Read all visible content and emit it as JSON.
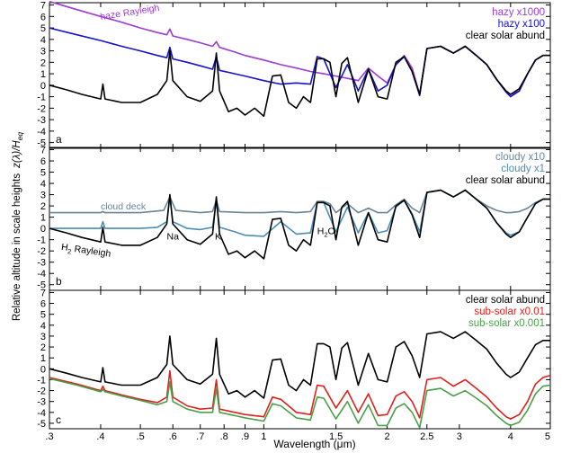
{
  "figure": {
    "ylabel_main": "Relative altitude in scale heights",
    "ylabel_symbol": "z(λ)/H",
    "ylabel_sub": "eq",
    "xlabel": "Wavelength  (μm)"
  },
  "x_axis": {
    "scale": "log",
    "range": [
      0.3,
      5.0
    ],
    "ticks": [
      0.3,
      0.4,
      0.5,
      0.6,
      0.7,
      0.8,
      0.9,
      1.0,
      1.5,
      2.0,
      2.5,
      3.0,
      4.0,
      5.0
    ],
    "tick_labels": [
      ".3",
      ".4",
      ".5",
      ".6",
      ".7",
      ".8",
      ".9",
      "1",
      "1.5",
      "2",
      "2.5",
      "3",
      "4",
      "5"
    ]
  },
  "colors": {
    "black": "#000000",
    "purple": "#9b3dd6",
    "blue": "#1414c8",
    "slate": "#6a8598",
    "teal": "#4a8fb0",
    "red": "#e0201c",
    "green": "#4aa04a"
  },
  "chart_data": [
    {
      "type": "line",
      "panel_label": "a",
      "ylim": [
        -5.5,
        7.2
      ],
      "yticks": [
        -5,
        -4,
        -3,
        -2,
        -1,
        0,
        1,
        2,
        3,
        4,
        5,
        6,
        7
      ],
      "legend_position": "top-right",
      "annotations": [
        {
          "text": "haze Rayleigh",
          "x": 0.4,
          "y": 5.7
        }
      ],
      "series": [
        {
          "name": "hazy x1000",
          "color": "#9b3dd6",
          "x": [
            0.3,
            0.35,
            0.4,
            0.45,
            0.5,
            0.55,
            0.58,
            0.59,
            0.6,
            0.65,
            0.7,
            0.75,
            0.766,
            0.78,
            0.85,
            0.9,
            1.0,
            1.1,
            1.2,
            1.3,
            1.4,
            1.5,
            1.6,
            1.7,
            1.8,
            1.9,
            2.0,
            2.1,
            2.2,
            2.3,
            2.4,
            2.5,
            2.7,
            2.9,
            3.1,
            3.3,
            3.5,
            3.7,
            3.9,
            4.0,
            4.2,
            4.4,
            4.6,
            4.8,
            5.0
          ],
          "y": [
            7.3,
            6.6,
            6.0,
            5.5,
            5.0,
            4.6,
            4.4,
            4.9,
            4.3,
            4.0,
            3.7,
            3.4,
            3.8,
            3.3,
            2.9,
            2.6,
            2.2,
            1.8,
            1.5,
            1.2,
            1.0,
            0.8,
            0.6,
            0.4,
            1.5,
            0.8,
            0.2,
            1.8,
            2.6,
            1.5,
            -0.8,
            3.2,
            3.4,
            2.8,
            3.4,
            2.6,
            1.8,
            0.5,
            -0.5,
            -0.8,
            -0.5,
            1.0,
            2.2,
            2.6,
            2.6
          ]
        },
        {
          "name": "hazy x100",
          "color": "#1414c8",
          "x": [
            0.3,
            0.35,
            0.4,
            0.45,
            0.5,
            0.55,
            0.58,
            0.59,
            0.6,
            0.65,
            0.7,
            0.75,
            0.766,
            0.78,
            0.85,
            0.9,
            1.0,
            1.1,
            1.2,
            1.3,
            1.35,
            1.4,
            1.5,
            1.6,
            1.7,
            1.8,
            1.9,
            2.0,
            2.1,
            2.2,
            2.3,
            2.4,
            2.5,
            2.7,
            2.9,
            3.1,
            3.3,
            3.5,
            3.7,
            3.9,
            4.0,
            4.2,
            4.4,
            4.6,
            4.8,
            5.0
          ],
          "y": [
            5.0,
            4.4,
            3.9,
            3.4,
            3.0,
            2.6,
            2.4,
            3.3,
            2.3,
            2.0,
            1.7,
            1.4,
            2.5,
            1.3,
            1.0,
            0.8,
            0.4,
            0.1,
            0.2,
            0.1,
            2.5,
            2.3,
            -0.2,
            1.8,
            -0.5,
            1.4,
            -0.5,
            0.0,
            1.8,
            2.5,
            1.2,
            -0.9,
            3.2,
            3.4,
            2.8,
            3.4,
            2.6,
            1.8,
            0.5,
            -0.6,
            -1.0,
            -0.5,
            1.0,
            2.2,
            2.6,
            2.6
          ]
        },
        {
          "name": "clear solar abund",
          "color": "#000000",
          "x": [
            0.3,
            0.33,
            0.36,
            0.4,
            0.405,
            0.41,
            0.45,
            0.5,
            0.55,
            0.58,
            0.59,
            0.6,
            0.65,
            0.7,
            0.75,
            0.766,
            0.78,
            0.82,
            0.86,
            0.9,
            0.95,
            1.0,
            1.05,
            1.1,
            1.15,
            1.2,
            1.25,
            1.3,
            1.35,
            1.4,
            1.45,
            1.5,
            1.55,
            1.6,
            1.7,
            1.8,
            1.9,
            2.0,
            2.1,
            2.2,
            2.3,
            2.4,
            2.5,
            2.7,
            2.9,
            3.1,
            3.3,
            3.5,
            3.7,
            3.9,
            4.0,
            4.2,
            4.4,
            4.6,
            4.8,
            5.0
          ],
          "y": [
            0.0,
            -0.4,
            -0.8,
            -1.2,
            0.1,
            -1.2,
            -1.5,
            -1.5,
            -0.8,
            0.4,
            3.0,
            0.4,
            -1.0,
            -1.4,
            -0.5,
            2.8,
            -0.5,
            -2.3,
            -2.0,
            -2.6,
            -2.0,
            -2.7,
            0.8,
            0.9,
            -1.5,
            -2.0,
            -1.0,
            -1.5,
            2.3,
            2.3,
            2.0,
            -1.0,
            1.9,
            2.4,
            -1.5,
            1.4,
            -1.0,
            -1.2,
            2.0,
            2.5,
            1.2,
            -0.8,
            3.2,
            3.4,
            2.8,
            3.4,
            2.6,
            1.8,
            0.5,
            -0.5,
            -0.8,
            -0.3,
            1.0,
            2.2,
            2.6,
            2.6
          ]
        }
      ]
    },
    {
      "type": "line",
      "panel_label": "b",
      "ylim": [
        -5.5,
        7.2
      ],
      "yticks": [
        -5,
        -4,
        -3,
        -2,
        -1,
        0,
        1,
        2,
        3,
        4,
        5,
        6,
        7
      ],
      "legend_position": "top-right",
      "annotations": [
        {
          "text": "cloud deck",
          "x": 0.4,
          "y": 1.7
        },
        {
          "text": "H",
          "sub": "2",
          "after": " Rayleigh",
          "x": 0.32,
          "y": -1.9
        },
        {
          "text": "Na",
          "x": 0.58,
          "y": -1.0
        },
        {
          "text": "K",
          "x": 0.76,
          "y": -1.0
        },
        {
          "text": "H",
          "sub": "2",
          "after": "O",
          "x": 1.35,
          "y": -0.5
        }
      ],
      "series": [
        {
          "name": "cloudy x10",
          "color": "#6a8598",
          "x": [
            0.3,
            0.4,
            0.405,
            0.41,
            0.5,
            0.57,
            0.59,
            0.61,
            0.7,
            0.75,
            0.766,
            0.78,
            0.9,
            1.0,
            1.1,
            1.2,
            1.3,
            1.35,
            1.4,
            1.45,
            1.5,
            1.6,
            1.7,
            1.8,
            1.9,
            2.0,
            2.1,
            2.2,
            2.3,
            2.4,
            2.5,
            2.7,
            2.9,
            3.1,
            3.3,
            3.5,
            3.7,
            3.9,
            4.0,
            4.2,
            4.4,
            4.6,
            4.8,
            5.0
          ],
          "y": [
            1.4,
            1.4,
            1.5,
            1.4,
            1.4,
            1.6,
            2.8,
            1.6,
            1.4,
            1.5,
            2.5,
            1.5,
            1.4,
            1.4,
            1.5,
            1.4,
            1.5,
            2.4,
            2.4,
            2.2,
            1.4,
            2.2,
            1.4,
            1.8,
            1.4,
            1.4,
            2.1,
            2.6,
            1.8,
            1.4,
            3.2,
            3.4,
            2.8,
            3.4,
            2.6,
            2.0,
            1.6,
            1.4,
            1.4,
            1.5,
            1.8,
            2.3,
            2.6,
            2.6
          ]
        },
        {
          "name": "cloudy x1",
          "color": "#4a8fb0",
          "x": [
            0.3,
            0.4,
            0.405,
            0.41,
            0.5,
            0.55,
            0.58,
            0.59,
            0.6,
            0.65,
            0.7,
            0.75,
            0.766,
            0.78,
            0.85,
            0.9,
            1.0,
            1.1,
            1.2,
            1.3,
            1.35,
            1.4,
            1.5,
            1.6,
            1.7,
            1.8,
            1.9,
            2.0,
            2.1,
            2.2,
            2.3,
            2.4,
            2.5,
            2.7,
            2.9,
            3.1,
            3.3,
            3.5,
            3.7,
            3.9,
            4.0,
            4.2,
            4.4,
            4.6,
            4.8,
            5.0
          ],
          "y": [
            0.0,
            0.0,
            0.6,
            0.0,
            0.0,
            0.1,
            0.6,
            2.8,
            0.6,
            0.0,
            -0.1,
            0.1,
            2.4,
            0.1,
            -0.3,
            -0.6,
            -0.7,
            0.6,
            -0.5,
            -0.4,
            2.3,
            2.3,
            -0.3,
            1.9,
            -0.4,
            1.4,
            -0.4,
            -0.2,
            1.9,
            2.5,
            1.3,
            -0.3,
            3.2,
            3.4,
            2.8,
            3.4,
            2.6,
            1.8,
            0.5,
            -0.4,
            -0.6,
            -0.3,
            1.0,
            2.2,
            2.6,
            2.6
          ]
        },
        {
          "name": "clear solar abund",
          "color": "#000000",
          "x": [
            0.3,
            0.33,
            0.36,
            0.4,
            0.405,
            0.41,
            0.45,
            0.5,
            0.55,
            0.58,
            0.59,
            0.6,
            0.65,
            0.7,
            0.75,
            0.766,
            0.78,
            0.82,
            0.86,
            0.9,
            0.95,
            1.0,
            1.05,
            1.1,
            1.15,
            1.2,
            1.25,
            1.3,
            1.35,
            1.4,
            1.45,
            1.5,
            1.55,
            1.6,
            1.7,
            1.8,
            1.9,
            2.0,
            2.1,
            2.2,
            2.3,
            2.4,
            2.5,
            2.7,
            2.9,
            3.1,
            3.3,
            3.5,
            3.7,
            3.9,
            4.0,
            4.2,
            4.4,
            4.6,
            4.8,
            5.0
          ],
          "y": [
            0.0,
            -0.4,
            -0.8,
            -1.2,
            0.1,
            -1.2,
            -1.5,
            -1.5,
            -0.8,
            0.4,
            3.0,
            0.4,
            -1.0,
            -1.4,
            -0.5,
            2.8,
            -0.5,
            -2.3,
            -2.0,
            -2.6,
            -2.0,
            -2.7,
            0.8,
            0.9,
            -1.5,
            -2.0,
            -1.0,
            -1.5,
            2.3,
            2.3,
            2.0,
            -1.0,
            1.9,
            2.4,
            -1.5,
            1.4,
            -1.0,
            -1.2,
            2.0,
            2.5,
            1.2,
            -0.8,
            3.2,
            3.4,
            2.8,
            3.4,
            2.6,
            1.8,
            0.5,
            -0.5,
            -0.8,
            -0.3,
            1.0,
            2.2,
            2.6,
            2.6
          ]
        }
      ]
    },
    {
      "type": "line",
      "panel_label": "c",
      "ylim": [
        -5.5,
        7.2
      ],
      "yticks": [
        -5,
        -4,
        -3,
        -2,
        -1,
        0,
        1,
        2,
        3,
        4,
        5,
        6,
        7
      ],
      "legend_position": "top-right",
      "annotations": [],
      "series": [
        {
          "name": "clear solar abund",
          "color": "#000000",
          "x": [
            0.3,
            0.33,
            0.36,
            0.4,
            0.405,
            0.41,
            0.45,
            0.5,
            0.55,
            0.58,
            0.59,
            0.6,
            0.65,
            0.7,
            0.75,
            0.766,
            0.78,
            0.82,
            0.86,
            0.9,
            0.95,
            1.0,
            1.05,
            1.1,
            1.15,
            1.2,
            1.25,
            1.3,
            1.35,
            1.4,
            1.45,
            1.5,
            1.55,
            1.6,
            1.7,
            1.8,
            1.9,
            2.0,
            2.1,
            2.2,
            2.3,
            2.4,
            2.5,
            2.7,
            2.9,
            3.1,
            3.3,
            3.5,
            3.7,
            3.9,
            4.0,
            4.2,
            4.4,
            4.6,
            4.8,
            5.0
          ],
          "y": [
            0.0,
            -0.4,
            -0.8,
            -1.2,
            0.1,
            -1.2,
            -1.5,
            -1.5,
            -0.8,
            0.4,
            3.0,
            0.4,
            -1.0,
            -1.4,
            -0.5,
            2.8,
            -0.5,
            -2.3,
            -2.0,
            -2.6,
            -2.0,
            -2.7,
            0.8,
            0.9,
            -1.5,
            -2.0,
            -1.0,
            -1.5,
            2.3,
            2.3,
            2.0,
            -1.0,
            1.9,
            2.4,
            -1.5,
            1.4,
            -1.0,
            -1.2,
            2.0,
            2.5,
            1.2,
            -0.8,
            3.2,
            3.4,
            2.8,
            3.4,
            2.6,
            1.8,
            0.5,
            -0.5,
            -0.8,
            -0.3,
            1.0,
            2.2,
            2.6,
            2.6
          ]
        },
        {
          "name": "sub-solar x0.01",
          "color": "#e0201c",
          "x": [
            0.3,
            0.35,
            0.4,
            0.405,
            0.41,
            0.45,
            0.5,
            0.55,
            0.58,
            0.59,
            0.6,
            0.65,
            0.7,
            0.75,
            0.766,
            0.78,
            0.85,
            0.9,
            1.0,
            1.05,
            1.1,
            1.2,
            1.3,
            1.35,
            1.4,
            1.5,
            1.6,
            1.7,
            1.8,
            1.9,
            2.0,
            2.1,
            2.2,
            2.3,
            2.4,
            2.5,
            2.7,
            2.9,
            3.1,
            3.3,
            3.5,
            3.7,
            3.9,
            4.0,
            4.2,
            4.4,
            4.6,
            4.8,
            5.0
          ],
          "y": [
            -0.8,
            -1.4,
            -2.0,
            -1.6,
            -2.0,
            -2.4,
            -2.8,
            -3.1,
            -2.6,
            -0.2,
            -2.6,
            -3.4,
            -3.7,
            -3.6,
            -1.0,
            -3.7,
            -4.0,
            -4.2,
            -4.4,
            -2.6,
            -2.8,
            -4.0,
            -4.2,
            -1.5,
            -1.6,
            -3.6,
            -2.0,
            -4.0,
            -2.3,
            -4.3,
            -4.2,
            -2.5,
            -2.1,
            -3.0,
            -4.5,
            -1.0,
            -0.8,
            -1.6,
            -1.0,
            -1.8,
            -2.6,
            -3.6,
            -4.4,
            -4.6,
            -4.2,
            -3.0,
            -1.4,
            -0.8,
            -0.6
          ]
        },
        {
          "name": "sub-solar x0.001",
          "color": "#4aa04a",
          "x": [
            0.3,
            0.35,
            0.4,
            0.405,
            0.41,
            0.45,
            0.5,
            0.55,
            0.58,
            0.59,
            0.6,
            0.65,
            0.7,
            0.75,
            0.766,
            0.78,
            0.85,
            0.9,
            1.0,
            1.05,
            1.1,
            1.2,
            1.3,
            1.35,
            1.4,
            1.5,
            1.6,
            1.7,
            1.8,
            1.9,
            2.0,
            2.1,
            2.2,
            2.3,
            2.4,
            2.5,
            2.7,
            2.9,
            3.1,
            3.3,
            3.5,
            3.7,
            3.9,
            4.0,
            4.2,
            4.4,
            4.6,
            4.8,
            5.0
          ],
          "y": [
            -0.9,
            -1.5,
            -2.1,
            -1.9,
            -2.1,
            -2.5,
            -2.9,
            -3.3,
            -3.0,
            -1.2,
            -3.0,
            -3.7,
            -4.0,
            -4.0,
            -1.8,
            -4.0,
            -4.3,
            -4.5,
            -4.8,
            -3.2,
            -3.4,
            -4.5,
            -4.7,
            -2.6,
            -2.7,
            -4.6,
            -3.0,
            -5.0,
            -3.3,
            -5.2,
            -5.2,
            -3.6,
            -3.2,
            -4.0,
            -5.4,
            -2.0,
            -1.8,
            -2.5,
            -2.0,
            -2.7,
            -3.4,
            -4.3,
            -5.0,
            -5.2,
            -4.9,
            -3.8,
            -2.3,
            -1.6,
            -1.5
          ]
        }
      ]
    }
  ]
}
